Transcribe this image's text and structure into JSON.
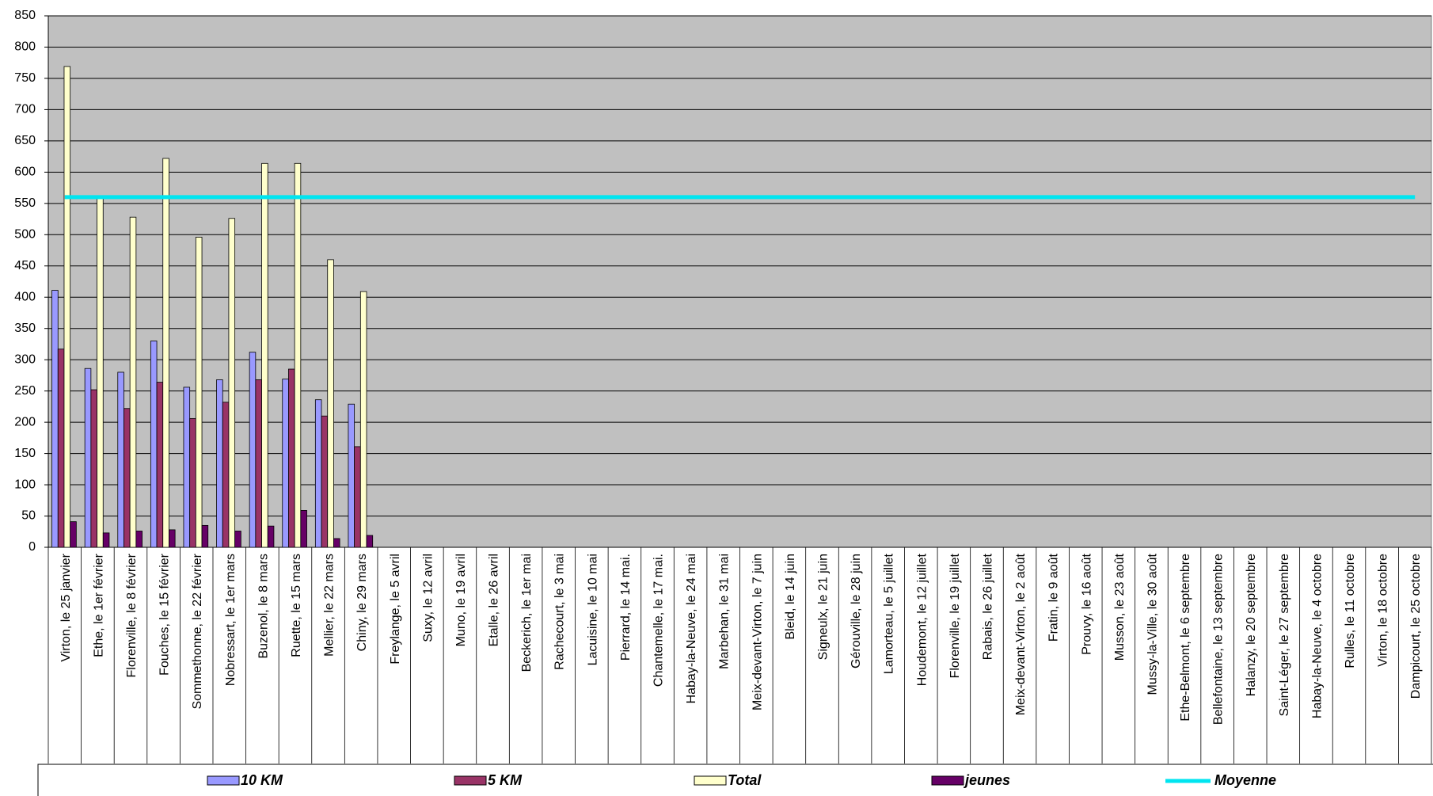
{
  "chart_data": {
    "type": "bar",
    "categories": [
      "Virton, le 25 janvier",
      "Ethe, le 1er février",
      "Florenville, le 8 février",
      "Fouches, le 15 février",
      "Sommethonne, le 22 février",
      "Nobressart, le 1er mars",
      "Buzenol, le 8 mars",
      "Ruette, le 15 mars",
      "Mellier, le 22 mars",
      "Chiny, le 29 mars",
      "Freylange, le 5 avril",
      "Suxy, le 12 avril",
      "Muno, le 19 avril",
      "Etalle, le 26 avril",
      "Beckerich, le 1er mai",
      "Rachecourt, le 3 mai",
      "Lacuisine, le 10 mai",
      "Pierrard, le 14 mai.",
      "Chantemelle, le 17 mai.",
      "Habay-la-Neuve, le 24 mai",
      "Marbehan, le 31 mai",
      "Meix-devant-Virton, le 7 juin",
      "Bleid, le 14 juin",
      "Signeulx, le 21 juin",
      "Gérouville, le 28 juin",
      "Lamorteau, le 5 juillet",
      "Houdemont, le 12 juillet",
      "Florenville, le 19 juillet",
      "Rabais, le 26 juillet",
      "Meix-devant-Virton, le 2 août",
      "Fratin, le 9 août",
      "Prouvy, le 16 août",
      "Musson, le 23 août",
      "Mussy-la-Ville, le 30 août",
      "Ethe-Belmont, le 6 septembre",
      "Bellefontaine, le 13 septembre",
      "Halanzy, le 20 septembre",
      "Saint-Léger, le 27 septembre",
      "Habay-la-Neuve, le 4 octobre",
      "Rulles, le 11 octobre",
      "Virton, le 18 octobre",
      "Dampicourt, le 25 octobre"
    ],
    "series": [
      {
        "name": "10 KM",
        "color": "#9999ff",
        "values": [
          411,
          286,
          280,
          330,
          256,
          268,
          312,
          269,
          236,
          229,
          null,
          null,
          null,
          null,
          null,
          null,
          null,
          null,
          null,
          null,
          null,
          null,
          null,
          null,
          null,
          null,
          null,
          null,
          null,
          null,
          null,
          null,
          null,
          null,
          null,
          null,
          null,
          null,
          null,
          null,
          null,
          null
        ]
      },
      {
        "name": "5 KM",
        "color": "#993366",
        "values": [
          317,
          252,
          222,
          264,
          206,
          232,
          268,
          285,
          210,
          161,
          null,
          null,
          null,
          null,
          null,
          null,
          null,
          null,
          null,
          null,
          null,
          null,
          null,
          null,
          null,
          null,
          null,
          null,
          null,
          null,
          null,
          null,
          null,
          null,
          null,
          null,
          null,
          null,
          null,
          null,
          null,
          null
        ]
      },
      {
        "name": "Total",
        "color": "#ffffcc",
        "values": [
          769,
          561,
          528,
          622,
          496,
          526,
          614,
          614,
          460,
          409,
          null,
          null,
          null,
          null,
          null,
          null,
          null,
          null,
          null,
          null,
          null,
          null,
          null,
          null,
          null,
          null,
          null,
          null,
          null,
          null,
          null,
          null,
          null,
          null,
          null,
          null,
          null,
          null,
          null,
          null,
          null,
          null
        ]
      },
      {
        "name": "jeunes",
        "color": "#660066",
        "values": [
          41,
          23,
          26,
          28,
          35,
          26,
          34,
          59,
          14,
          19,
          null,
          null,
          null,
          null,
          null,
          null,
          null,
          null,
          null,
          null,
          null,
          null,
          null,
          null,
          null,
          null,
          null,
          null,
          null,
          null,
          null,
          null,
          null,
          null,
          null,
          null,
          null,
          null,
          null,
          null,
          null,
          null
        ]
      },
      {
        "name": "Moyenne",
        "color": "#00e5f0",
        "type": "line",
        "values": [
          560,
          560,
          560,
          560,
          560,
          560,
          560,
          560,
          560,
          560,
          560,
          560,
          560,
          560,
          560,
          560,
          560,
          560,
          560,
          560,
          560,
          560,
          560,
          560,
          560,
          560,
          560,
          560,
          560,
          560,
          560,
          560,
          560,
          560,
          560,
          560,
          560,
          560,
          560,
          560,
          560,
          560
        ]
      }
    ],
    "ylim": [
      0,
      850
    ],
    "yticks": [
      0,
      50,
      100,
      150,
      200,
      250,
      300,
      350,
      400,
      450,
      500,
      550,
      600,
      650,
      700,
      750,
      800,
      850
    ],
    "grid": true,
    "plot_background": "#c0c0c0",
    "legend": "bottom"
  }
}
